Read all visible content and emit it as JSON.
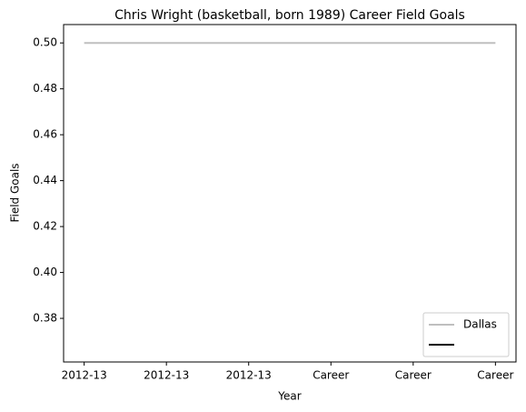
{
  "chart_data": {
    "type": "line",
    "title": "Chris Wright (basketball, born 1989) Career Field Goals",
    "xlabel": "Year",
    "ylabel": "Field Goals",
    "categories": [
      "2012-13",
      "2012-13",
      "2012-13",
      "Career",
      "Career",
      "Career"
    ],
    "series": [
      {
        "name": "Dallas",
        "color": "#bfbfbf",
        "values": [
          0.5,
          0.5,
          0.5,
          0.5,
          0.5,
          0.5
        ]
      },
      {
        "name": null,
        "color": "#000000",
        "values": [
          null,
          null,
          null,
          null,
          null,
          null
        ]
      }
    ],
    "ylim": [
      0.361,
      0.508
    ],
    "yticks": [
      0.38,
      {
        "value": 0.4,
        "label": "0.40"
      },
      0.42,
      0.44,
      0.46,
      0.48,
      {
        "value": 0.5,
        "label": "0.50"
      }
    ],
    "legend": "lower right"
  }
}
